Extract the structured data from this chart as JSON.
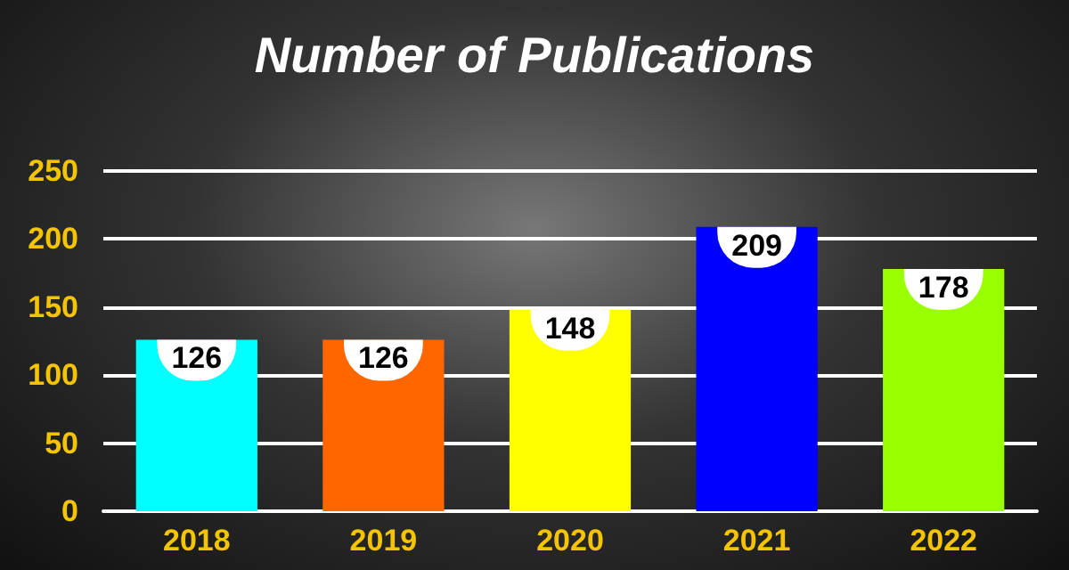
{
  "chart_data": {
    "type": "bar",
    "title": "Number of Publications",
    "categories": [
      "2018",
      "2019",
      "2020",
      "2021",
      "2022"
    ],
    "values": [
      126,
      126,
      148,
      209,
      178
    ],
    "colors": [
      "#00ffff",
      "#ff6600",
      "#ffff00",
      "#0000ff",
      "#99ff00"
    ],
    "ylim": [
      0,
      250
    ],
    "yticks": [
      0,
      50,
      100,
      150,
      200,
      250
    ],
    "grid": "y",
    "data_labels": true
  }
}
